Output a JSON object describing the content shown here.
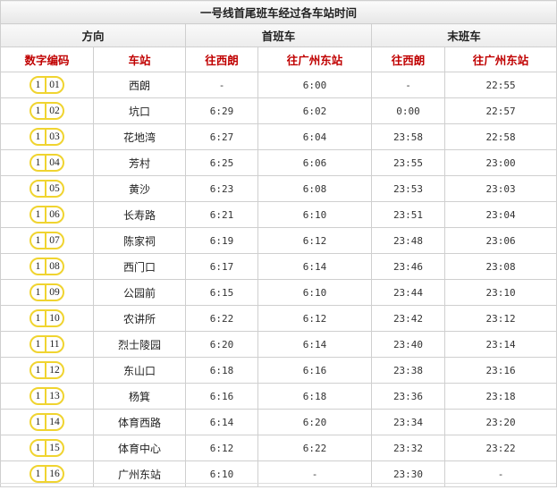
{
  "title": "一号线首尾班车经过各车站时间",
  "groups": {
    "direction": "方向",
    "first": "首班车",
    "last": "末班车"
  },
  "columns": {
    "code": "数字编码",
    "station": "车站",
    "first_xilang": "往西朗",
    "first_gzd": "往广州东站",
    "last_xilang": "往西朗",
    "last_gzd": "往广州东站"
  },
  "badge_color": "#f0d430",
  "header_color": "#c00000",
  "rows": [
    {
      "line": "1",
      "num": "01",
      "station": "西朗",
      "f1": "-",
      "f2": "6:00",
      "l1": "-",
      "l2": "22:55"
    },
    {
      "line": "1",
      "num": "02",
      "station": "坑口",
      "f1": "6:29",
      "f2": "6:02",
      "l1": "0:00",
      "l2": "22:57"
    },
    {
      "line": "1",
      "num": "03",
      "station": "花地湾",
      "f1": "6:27",
      "f2": "6:04",
      "l1": "23:58",
      "l2": "22:58"
    },
    {
      "line": "1",
      "num": "04",
      "station": "芳村",
      "f1": "6:25",
      "f2": "6:06",
      "l1": "23:55",
      "l2": "23:00"
    },
    {
      "line": "1",
      "num": "05",
      "station": "黄沙",
      "f1": "6:23",
      "f2": "6:08",
      "l1": "23:53",
      "l2": "23:03"
    },
    {
      "line": "1",
      "num": "06",
      "station": "长寿路",
      "f1": "6:21",
      "f2": "6:10",
      "l1": "23:51",
      "l2": "23:04"
    },
    {
      "line": "1",
      "num": "07",
      "station": "陈家祠",
      "f1": "6:19",
      "f2": "6:12",
      "l1": "23:48",
      "l2": "23:06"
    },
    {
      "line": "1",
      "num": "08",
      "station": "西门口",
      "f1": "6:17",
      "f2": "6:14",
      "l1": "23:46",
      "l2": "23:08"
    },
    {
      "line": "1",
      "num": "09",
      "station": "公园前",
      "f1": "6:15",
      "f2": "6:10",
      "l1": "23:44",
      "l2": "23:10"
    },
    {
      "line": "1",
      "num": "10",
      "station": "农讲所",
      "f1": "6:22",
      "f2": "6:12",
      "l1": "23:42",
      "l2": "23:12"
    },
    {
      "line": "1",
      "num": "11",
      "station": "烈士陵园",
      "f1": "6:20",
      "f2": "6:14",
      "l1": "23:40",
      "l2": "23:14"
    },
    {
      "line": "1",
      "num": "12",
      "station": "东山口",
      "f1": "6:18",
      "f2": "6:16",
      "l1": "23:38",
      "l2": "23:16"
    },
    {
      "line": "1",
      "num": "13",
      "station": "杨箕",
      "f1": "6:16",
      "f2": "6:18",
      "l1": "23:36",
      "l2": "23:18"
    },
    {
      "line": "1",
      "num": "14",
      "station": "体育西路",
      "f1": "6:14",
      "f2": "6:20",
      "l1": "23:34",
      "l2": "23:20"
    },
    {
      "line": "1",
      "num": "15",
      "station": "体育中心",
      "f1": "6:12",
      "f2": "6:22",
      "l1": "23:32",
      "l2": "23:22"
    },
    {
      "line": "1",
      "num": "16",
      "station": "广州东站",
      "f1": "6:10",
      "f2": "-",
      "l1": "23:30",
      "l2": "-"
    }
  ]
}
